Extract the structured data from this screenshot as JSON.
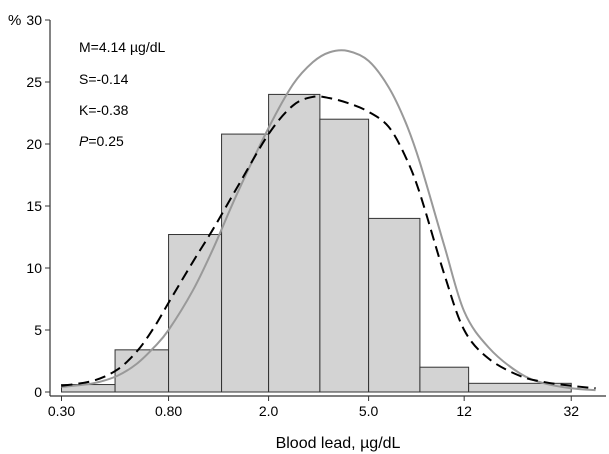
{
  "chart_data": {
    "type": "bar",
    "subtype": "histogram",
    "xlabel": "Blood lead, µg/dL",
    "x_scale": "log",
    "y_unit": "%",
    "ylim": [
      0,
      30
    ],
    "yticks": [
      0,
      5,
      10,
      15,
      20,
      25,
      30
    ],
    "xticks": [
      {
        "value": 0.3,
        "label": "0.30"
      },
      {
        "value": 0.8,
        "label": "0.80"
      },
      {
        "value": 2.0,
        "label": "2.0"
      },
      {
        "value": 5.0,
        "label": "5.0"
      },
      {
        "value": 12,
        "label": "12"
      },
      {
        "value": 32,
        "label": "32"
      }
    ],
    "xlim": [
      0.27,
      44
    ],
    "bins": [
      {
        "x0": 0.3,
        "x1": 0.49,
        "value": 0.6
      },
      {
        "x0": 0.49,
        "x1": 0.8,
        "value": 3.4
      },
      {
        "x0": 0.8,
        "x1": 1.3,
        "value": 12.7
      },
      {
        "x0": 1.3,
        "x1": 2.0,
        "value": 20.8
      },
      {
        "x0": 2.0,
        "x1": 3.2,
        "value": 24.0
      },
      {
        "x0": 3.2,
        "x1": 5.0,
        "value": 22.0
      },
      {
        "x0": 5.0,
        "x1": 8.0,
        "value": 14.0
      },
      {
        "x0": 8.0,
        "x1": 12.5,
        "value": 2.0
      },
      {
        "x0": 12.5,
        "x1": 32,
        "value": 0.7
      }
    ],
    "series": [
      {
        "style": "solid-gray",
        "color": "#999999",
        "x": [
          0.3,
          0.4,
          0.5,
          0.6,
          0.7,
          0.8,
          1.0,
          1.2,
          1.5,
          2.0,
          2.5,
          3.0,
          3.5,
          4.14,
          5.0,
          6.0,
          7.0,
          8.0,
          10,
          12,
          15,
          20,
          25,
          32,
          40
        ],
        "values": [
          0.4,
          0.7,
          1.3,
          2.3,
          3.6,
          5.0,
          8.2,
          11.5,
          16.0,
          21.3,
          24.8,
          26.6,
          27.4,
          27.5,
          26.7,
          24.6,
          21.8,
          18.5,
          11.8,
          6.5,
          3.6,
          1.5,
          0.7,
          0.3,
          0.15
        ]
      },
      {
        "style": "dashed-black",
        "color": "#000000",
        "x": [
          0.3,
          0.4,
          0.5,
          0.6,
          0.7,
          0.8,
          1.0,
          1.2,
          1.5,
          2.0,
          2.5,
          3.0,
          3.5,
          4.14,
          5.0,
          6.0,
          7.0,
          8.0,
          10,
          12,
          15,
          20,
          25,
          32,
          40
        ],
        "values": [
          0.5,
          0.9,
          1.8,
          3.3,
          5.2,
          7.2,
          10.5,
          13.1,
          16.5,
          20.8,
          23.1,
          23.8,
          23.7,
          23.3,
          22.6,
          21.4,
          19.0,
          16.0,
          9.5,
          5.0,
          2.7,
          1.3,
          0.8,
          0.5,
          0.3
        ]
      }
    ],
    "annotations": [
      {
        "id": "m",
        "text": "M=4.14 µg/dL"
      },
      {
        "id": "s",
        "text": "S=-0.14"
      },
      {
        "id": "k",
        "text": "K=-0.38"
      },
      {
        "id": "p_symbol",
        "text": "P"
      },
      {
        "id": "p_value",
        "text": "=0.25"
      }
    ],
    "grid": false,
    "colors": {
      "bar_fill": "#d3d3d3",
      "bar_stroke": "#333333",
      "axis": "#333333"
    }
  }
}
